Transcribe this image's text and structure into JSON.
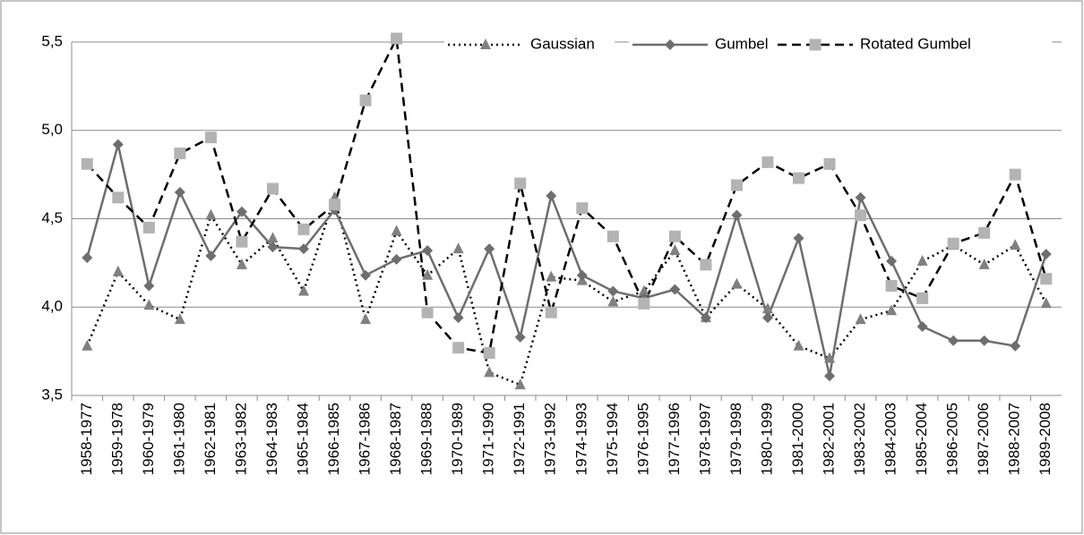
{
  "chart_data": {
    "type": "line",
    "categories": [
      "1958-1977",
      "1959-1978",
      "1960-1979",
      "1961-1980",
      "1962-1981",
      "1963-1982",
      "1964-1983",
      "1965-1984",
      "1966-1985",
      "1967-1986",
      "1968-1987",
      "1969-1988",
      "1970-1989",
      "1971-1990",
      "1972-1991",
      "1973-1992",
      "1974-1993",
      "1975-1994",
      "1976-1995",
      "1977-1996",
      "1978-1997",
      "1979-1998",
      "1980-1999",
      "1981-2000",
      "1982-2001",
      "1983-2002",
      "1984-2003",
      "1985-2004",
      "1986-2005",
      "1987-2006",
      "1988-2007",
      "1989-2008"
    ],
    "series": [
      {
        "name": "Gaussian",
        "color": "#808080",
        "line_color": "#000000",
        "dash": "dotted",
        "marker": "triangle",
        "values": [
          3.78,
          4.2,
          4.01,
          3.93,
          4.52,
          4.24,
          4.39,
          4.09,
          4.62,
          3.93,
          4.43,
          4.18,
          4.33,
          3.63,
          3.56,
          4.17,
          4.15,
          4.03,
          4.09,
          4.32,
          3.94,
          4.13,
          3.99,
          3.78,
          3.71,
          3.93,
          3.98,
          4.26,
          4.35,
          4.24,
          4.35,
          4.02
        ]
      },
      {
        "name": "Gumbel",
        "color": "#6e6e6e",
        "line_color": "#6e6e6e",
        "dash": "solid",
        "marker": "diamond",
        "values": [
          4.28,
          4.92,
          4.12,
          4.65,
          4.29,
          4.54,
          4.34,
          4.33,
          4.55,
          4.18,
          4.27,
          4.32,
          3.94,
          4.33,
          3.83,
          4.63,
          4.18,
          4.09,
          4.05,
          4.1,
          3.94,
          4.52,
          3.94,
          4.39,
          3.61,
          4.62,
          4.26,
          3.89,
          3.81,
          3.81,
          3.78,
          4.3
        ]
      },
      {
        "name": "Rotated Gumbel",
        "color": "#b3b3b3",
        "line_color": "#000000",
        "dash": "dashed",
        "marker": "square",
        "values": [
          4.81,
          4.62,
          4.45,
          4.87,
          4.96,
          4.37,
          4.67,
          4.44,
          4.58,
          5.17,
          5.52,
          3.97,
          3.77,
          3.74,
          4.7,
          3.97,
          4.56,
          4.4,
          4.02,
          4.4,
          4.24,
          4.69,
          4.82,
          4.73,
          4.81,
          4.52,
          4.12,
          4.05,
          4.36,
          4.42,
          4.75,
          4.16
        ]
      }
    ],
    "ylim": [
      3.5,
      5.5
    ],
    "yticks": [
      {
        "value": 3.5,
        "label": "3,5"
      },
      {
        "value": 4.0,
        "label": "4,0"
      },
      {
        "value": 4.5,
        "label": "4,5"
      },
      {
        "value": 5.0,
        "label": "5,0"
      },
      {
        "value": 5.5,
        "label": "5,5"
      }
    ],
    "grid": true,
    "legend": "top-right"
  }
}
